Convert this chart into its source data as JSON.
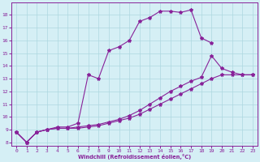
{
  "xlabel": "Windchill (Refroidissement éolien,°C)",
  "background_color": "#d5eff5",
  "grid_color": "#add8e0",
  "line_color": "#882299",
  "xmin": -0.5,
  "xmax": 23.5,
  "ymin": 7.7,
  "ymax": 19.0,
  "yticks": [
    8,
    9,
    10,
    11,
    12,
    13,
    14,
    15,
    16,
    17,
    18
  ],
  "xticks": [
    0,
    1,
    2,
    3,
    4,
    5,
    6,
    7,
    8,
    9,
    10,
    11,
    12,
    13,
    14,
    15,
    16,
    17,
    18,
    19,
    20,
    21,
    22,
    23
  ],
  "line1_x": [
    0,
    1,
    2,
    3,
    4,
    5,
    6,
    7,
    8,
    9,
    10,
    11,
    12,
    13,
    14,
    15,
    16,
    17,
    18,
    19
  ],
  "line1_y": [
    8.8,
    8.0,
    8.8,
    9.0,
    9.2,
    9.2,
    9.5,
    13.3,
    13.0,
    15.2,
    15.5,
    16.0,
    17.5,
    17.8,
    18.3,
    18.3,
    18.2,
    18.4,
    16.2,
    15.8
  ],
  "line2_x": [
    0,
    1,
    2,
    3,
    4,
    5,
    6,
    7,
    8,
    9,
    10,
    11,
    12,
    13,
    14,
    15,
    16,
    17,
    18,
    19,
    20,
    21,
    22,
    23
  ],
  "line2_y": [
    8.8,
    8.0,
    8.8,
    9.0,
    9.1,
    9.1,
    9.2,
    9.3,
    9.4,
    9.6,
    9.8,
    10.1,
    10.5,
    11.0,
    11.5,
    12.0,
    12.4,
    12.8,
    13.1,
    14.8,
    13.8,
    13.5,
    13.3,
    13.3
  ],
  "line3_x": [
    0,
    1,
    2,
    3,
    4,
    5,
    6,
    7,
    8,
    9,
    10,
    11,
    12,
    13,
    14,
    15,
    16,
    17,
    18,
    19,
    20,
    21,
    22,
    23
  ],
  "line3_y": [
    8.8,
    8.0,
    8.8,
    9.0,
    9.1,
    9.1,
    9.1,
    9.2,
    9.3,
    9.5,
    9.7,
    9.9,
    10.2,
    10.6,
    11.0,
    11.4,
    11.8,
    12.2,
    12.6,
    13.0,
    13.3,
    13.3,
    13.3,
    13.3
  ]
}
